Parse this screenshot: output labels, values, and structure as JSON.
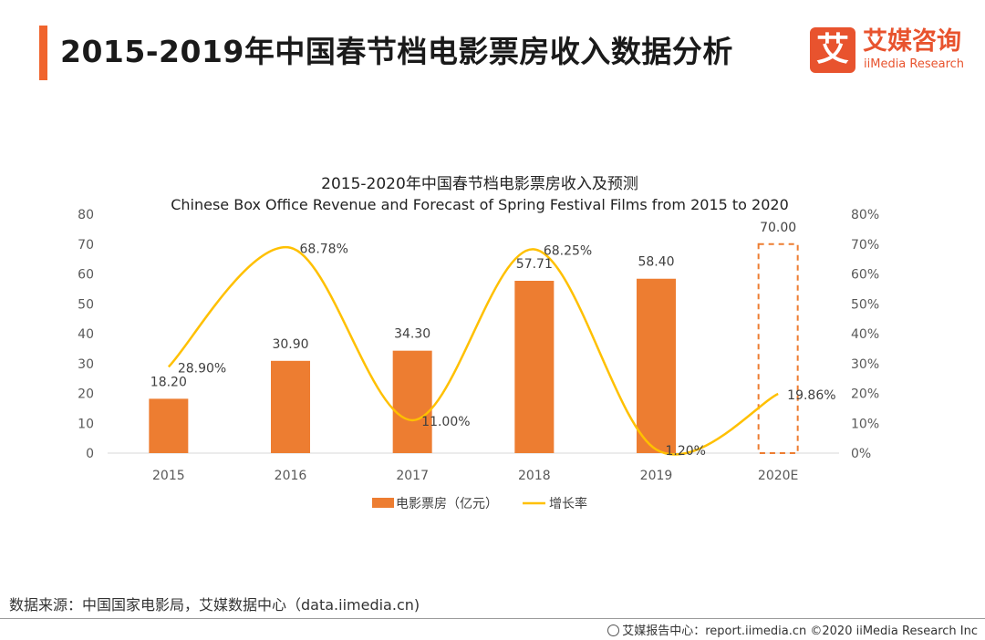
{
  "page": {
    "title": "2015-2019年中国春节档电影票房收入数据分析",
    "source": "数据来源：中国国家电影局，艾媒数据中心（data.iimedia.cn)",
    "footer": "艾媒报告中心：report.iimedia.cn  ©2020  iiMedia Research  Inc"
  },
  "logo": {
    "mark": "艾",
    "cn": "艾媒咨询",
    "en": "iiMedia Research",
    "color": "#e8532e"
  },
  "chart_data": {
    "type": "bar",
    "title": "2015-2020年中国春节档电影票房收入及预测",
    "subtitle": "Chinese Box Office Revenue and Forecast of Spring Festival Films from 2015 to 2020",
    "categories": [
      "2015",
      "2016",
      "2017",
      "2018",
      "2019",
      "2020E"
    ],
    "series": [
      {
        "name": "电影票房（亿元）",
        "type": "bar",
        "axis": "left",
        "color": "#ed7d31",
        "values": [
          18.2,
          30.9,
          34.3,
          57.71,
          58.4,
          70.0
        ],
        "labels": [
          "18.20",
          "30.90",
          "34.30",
          "57.71",
          "58.40",
          "70.00"
        ],
        "forecast_index": 5
      },
      {
        "name": "增长率",
        "type": "line",
        "axis": "right",
        "color": "#ffc000",
        "values": [
          28.9,
          68.78,
          11.0,
          68.25,
          1.2,
          19.86
        ],
        "labels": [
          "28.90%",
          "68.78%",
          "11.00%",
          "68.25%",
          "1.20%",
          "19.86%"
        ]
      }
    ],
    "y_left": {
      "min": 0,
      "max": 80,
      "ticks": [
        "0",
        "10",
        "20",
        "30",
        "40",
        "50",
        "60",
        "70",
        "80"
      ]
    },
    "y_right": {
      "min": 0,
      "max": 80,
      "ticks": [
        "0%",
        "10%",
        "20%",
        "30%",
        "40%",
        "50%",
        "60%",
        "70%",
        "80%"
      ]
    },
    "grid": false,
    "legend_position": "bottom"
  }
}
